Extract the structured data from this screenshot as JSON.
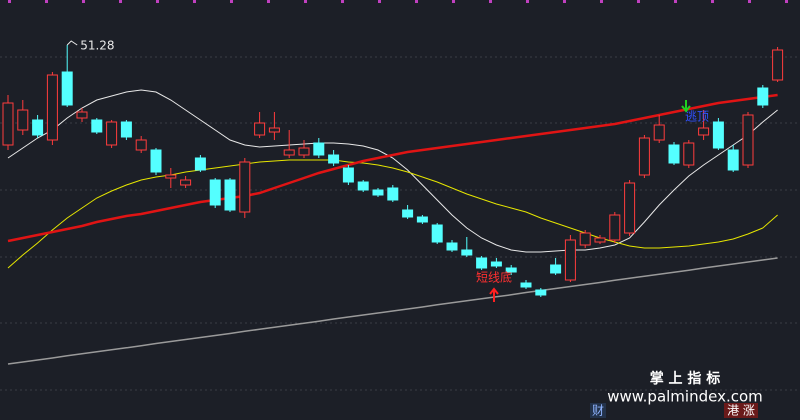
{
  "chart_data": {
    "type": "candlestick",
    "ylim": [
      36.28,
      53.08
    ],
    "up_color": "#ff3c3c",
    "down_color": "#54ffff",
    "open": [
      47.28,
      47.88,
      48.28,
      47.48,
      50.2,
      48.36,
      48.28,
      47.28,
      48.2,
      47.08,
      47.08,
      45.96,
      45.68,
      46.76,
      45.88,
      45.88,
      44.6,
      47.68,
      47.8,
      46.88,
      46.88,
      47.36,
      46.88,
      46.36,
      45.8,
      45.48,
      45.56,
      44.68,
      44.4,
      44.08,
      43.36,
      43.08,
      42.76,
      42.6,
      42.36,
      41.76,
      41.48,
      42.48,
      41.88,
      43.28,
      43.4,
      43.48,
      43.76,
      46.08,
      47.48,
      47.28,
      46.48,
      47.68,
      48.2,
      47.08,
      46.48,
      49.56,
      49.88
    ],
    "high": [
      49.28,
      49.08,
      48.48,
      50.2,
      51.28,
      48.76,
      48.36,
      48.28,
      48.28,
      47.64,
      47.16,
      46.36,
      46.04,
      46.88,
      45.96,
      45.96,
      46.76,
      48.6,
      48.6,
      47.88,
      47.48,
      47.56,
      47.08,
      46.48,
      45.88,
      45.56,
      45.68,
      44.88,
      44.48,
      44.16,
      43.48,
      43.6,
      42.84,
      42.76,
      42.48,
      41.88,
      41.56,
      42.76,
      43.68,
      43.88,
      43.68,
      44.6,
      45.88,
      47.68,
      48.48,
      47.4,
      47.48,
      48.68,
      48.36,
      47.28,
      48.6,
      49.68,
      51.2
    ],
    "low": [
      47.08,
      47.68,
      47.56,
      47.28,
      48.8,
      48.2,
      47.72,
      47.16,
      47.48,
      46.96,
      46.08,
      45.56,
      45.56,
      46.2,
      44.76,
      44.6,
      44.36,
      47.56,
      47.48,
      46.76,
      46.76,
      46.76,
      46.44,
      45.68,
      45.4,
      45.2,
      45.0,
      44.32,
      44.12,
      43.32,
      43.0,
      42.8,
      42.28,
      42.36,
      42.08,
      41.52,
      41.2,
      42.08,
      41.8,
      43.16,
      43.32,
      43.36,
      43.64,
      45.96,
      47.36,
      46.48,
      46.36,
      47.48,
      47.08,
      46.2,
      46.36,
      48.76,
      49.8
    ],
    "close": [
      48.96,
      48.68,
      47.68,
      50.08,
      48.88,
      48.6,
      47.8,
      48.2,
      47.6,
      47.48,
      46.2,
      46.08,
      45.88,
      46.28,
      44.88,
      44.68,
      46.6,
      48.16,
      47.96,
      47.08,
      47.16,
      46.88,
      46.56,
      45.8,
      45.48,
      45.28,
      45.08,
      44.4,
      44.2,
      43.4,
      43.08,
      42.88,
      42.36,
      42.44,
      42.2,
      41.6,
      41.28,
      42.16,
      43.48,
      43.76,
      43.56,
      44.48,
      45.76,
      47.56,
      48.08,
      46.56,
      47.36,
      47.96,
      47.16,
      46.28,
      48.48,
      48.88,
      51.08
    ],
    "series": [
      {
        "color": "#e8e8e8",
        "values": [
          46.76,
          47.16,
          47.56,
          47.88,
          48.36,
          48.76,
          49.08,
          49.24,
          49.4,
          49.48,
          49.4,
          49.08,
          48.68,
          48.28,
          47.88,
          47.48,
          47.28,
          47.2,
          47.24,
          47.28,
          47.32,
          47.36,
          47.36,
          47.32,
          47.24,
          47.08,
          46.76,
          46.28,
          45.68,
          45.08,
          44.48,
          43.96,
          43.56,
          43.28,
          43.08,
          43.0,
          43.0,
          43.04,
          43.08,
          43.08,
          43.16,
          43.28,
          43.56,
          44.2,
          44.88,
          45.48,
          46.04,
          46.48,
          46.88,
          47.28,
          47.68,
          48.2,
          48.68
        ]
      },
      {
        "color": "#e6e600",
        "values": [
          42.36,
          42.88,
          43.36,
          43.88,
          44.36,
          44.76,
          45.16,
          45.44,
          45.68,
          45.88,
          46.0,
          46.08,
          46.2,
          46.28,
          46.36,
          46.44,
          46.52,
          46.6,
          46.64,
          46.68,
          46.68,
          46.68,
          46.68,
          46.6,
          46.56,
          46.48,
          46.36,
          46.2,
          46.0,
          45.8,
          45.56,
          45.32,
          45.12,
          44.92,
          44.76,
          44.6,
          44.36,
          44.16,
          43.96,
          43.76,
          43.56,
          43.4,
          43.24,
          43.16,
          43.16,
          43.2,
          43.24,
          43.32,
          43.4,
          43.52,
          43.72,
          43.96,
          44.48
        ]
      },
      {
        "color": "#e01414",
        "values": [
          43.44,
          43.56,
          43.68,
          43.8,
          43.92,
          44.04,
          44.2,
          44.32,
          44.44,
          44.52,
          44.64,
          44.76,
          44.88,
          45.0,
          45.08,
          45.16,
          45.24,
          45.36,
          45.56,
          45.76,
          45.96,
          46.16,
          46.32,
          46.48,
          46.64,
          46.76,
          46.88,
          47.0,
          47.08,
          47.16,
          47.24,
          47.32,
          47.4,
          47.48,
          47.56,
          47.64,
          47.72,
          47.8,
          47.88,
          47.96,
          48.04,
          48.12,
          48.24,
          48.36,
          48.48,
          48.6,
          48.72,
          48.84,
          48.96,
          49.04,
          49.12,
          49.2,
          49.28
        ]
      },
      {
        "color": "#9a9a9a",
        "values": [
          38.52,
          38.6,
          38.68,
          38.76,
          38.85,
          38.93,
          39.01,
          39.09,
          39.17,
          39.25,
          39.34,
          39.42,
          39.5,
          39.58,
          39.66,
          39.74,
          39.83,
          39.91,
          39.99,
          40.07,
          40.15,
          40.23,
          40.32,
          40.4,
          40.48,
          40.56,
          40.64,
          40.72,
          40.8,
          40.89,
          40.97,
          41.05,
          41.13,
          41.21,
          41.29,
          41.38,
          41.46,
          41.54,
          41.62,
          41.7,
          41.78,
          41.87,
          41.95,
          42.03,
          42.11,
          42.19,
          42.27,
          42.36,
          42.44,
          42.52,
          42.6,
          42.68,
          42.76
        ]
      }
    ]
  },
  "signals": [
    "短线底",
    "逃顶"
  ],
  "watermark": {
    "title": "掌 上 指 标",
    "url": "www.palmindex.com"
  },
  "footer": [
    "财",
    "港 涨"
  ]
}
